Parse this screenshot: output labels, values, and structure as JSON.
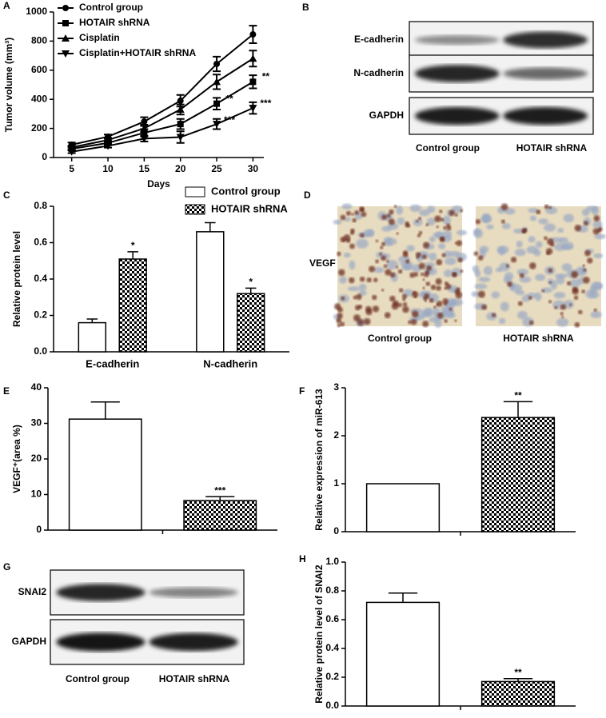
{
  "chart_data": [
    {
      "panel": "A",
      "type": "line",
      "xlabel": "Days",
      "ylabel": "Tumor volume (mm³)",
      "x": [
        5,
        10,
        15,
        20,
        25,
        30
      ],
      "xlim": [
        2.5,
        31.5
      ],
      "xticks": [
        5,
        10,
        15,
        20,
        25,
        30
      ],
      "ylim": [
        0,
        1000
      ],
      "yticks": [
        0,
        200,
        400,
        600,
        800,
        1000
      ],
      "legend": "upper-left",
      "series": [
        {
          "name": "Control group",
          "color": "#000000",
          "marker": "circle",
          "values": [
            88,
            143,
            247,
            390,
            643,
            846
          ],
          "errors": [
            15,
            15,
            30,
            40,
            50,
            60
          ],
          "significance": [
            null,
            null,
            null,
            null,
            null,
            null
          ]
        },
        {
          "name": "HOTAIR shRNA",
          "color": "#000000",
          "marker": "square",
          "values": [
            60,
            100,
            170,
            230,
            370,
            520
          ],
          "errors": [
            12,
            15,
            25,
            35,
            40,
            45
          ],
          "significance": [
            null,
            null,
            null,
            null,
            "**",
            "**"
          ]
        },
        {
          "name": "Cisplatin",
          "color": "#000000",
          "marker": "triangle-up",
          "values": [
            70,
            120,
            200,
            330,
            520,
            680
          ],
          "errors": [
            12,
            15,
            25,
            35,
            50,
            55
          ],
          "significance": [
            null,
            null,
            null,
            null,
            null,
            null
          ]
        },
        {
          "name": "Cisplatin+HOTAIR shRNA",
          "color": "#000000",
          "marker": "triangle-down",
          "values": [
            40,
            80,
            130,
            140,
            230,
            340
          ],
          "errors": [
            10,
            12,
            20,
            40,
            35,
            40
          ],
          "significance": [
            null,
            null,
            null,
            null,
            "***",
            "***"
          ]
        }
      ]
    },
    {
      "panel": "C",
      "type": "bar",
      "ylabel": "Relative protein level",
      "categories": [
        "E-cadherin",
        "N-cadherin"
      ],
      "ylim": [
        0,
        0.8
      ],
      "yticks": [
        {
          "value": 0,
          "label": "0.0"
        },
        0.2,
        0.4,
        0.6,
        0.8
      ],
      "legend": "upper-right",
      "series": [
        {
          "name": "Control group",
          "fill": "white",
          "values": [
            0.16,
            0.66
          ],
          "errors": [
            0.02,
            0.05
          ],
          "significance": [
            null,
            null
          ]
        },
        {
          "name": "HOTAIR shRNA",
          "fill": "checker",
          "values": [
            0.51,
            0.32
          ],
          "errors": [
            0.04,
            0.03
          ],
          "significance": [
            "*",
            "*"
          ]
        }
      ]
    },
    {
      "panel": "E",
      "type": "bar",
      "ylabel": "VEGF⁺(area %)",
      "categories": [
        null,
        null
      ],
      "values": [
        31.2,
        8.3
      ],
      "errors": [
        4.8,
        1.1
      ],
      "fills": [
        "white",
        "checker"
      ],
      "significance": [
        null,
        "***"
      ],
      "ylim": [
        0,
        40
      ],
      "yticks": [
        0,
        10,
        20,
        30,
        40
      ]
    },
    {
      "panel": "F",
      "type": "bar",
      "ylabel": "Relative expression of miR-613",
      "categories": [
        null,
        null
      ],
      "values": [
        1,
        2.38
      ],
      "errors": [
        0,
        0.33
      ],
      "fills": [
        "white",
        "checker"
      ],
      "significance": [
        null,
        "**"
      ],
      "ylim": [
        0,
        3
      ],
      "yticks": [
        0,
        1,
        2,
        3
      ]
    },
    {
      "panel": "H",
      "type": "bar",
      "ylabel": "Relative protein level of SNAI2",
      "categories": [
        null,
        null
      ],
      "values": [
        0.72,
        0.17
      ],
      "errors": [
        0.065,
        0.02
      ],
      "fills": [
        "white",
        "checker"
      ],
      "significance": [
        null,
        "**"
      ],
      "ylim": [
        0,
        1.0
      ],
      "yticks": [
        {
          "value": 0,
          "label": "0.0"
        },
        0.2,
        0.4,
        0.6,
        0.8,
        {
          "value": 1.0,
          "label": "1.0"
        }
      ]
    }
  ],
  "blot_b": {
    "panel": "B",
    "rows": [
      "E-cadherin",
      "N-cadherin",
      "GAPDH"
    ],
    "lanes": [
      "Control group",
      "HOTAIR shRNA"
    ]
  },
  "stain_d": {
    "panel": "D",
    "stain": "VEGF",
    "lanes": [
      "Control group",
      "HOTAIR shRNA"
    ]
  },
  "blot_g": {
    "panel": "G",
    "rows": [
      "SNAI2",
      "GAPDH"
    ],
    "lanes": [
      "Control group",
      "HOTAIR shRNA"
    ]
  }
}
